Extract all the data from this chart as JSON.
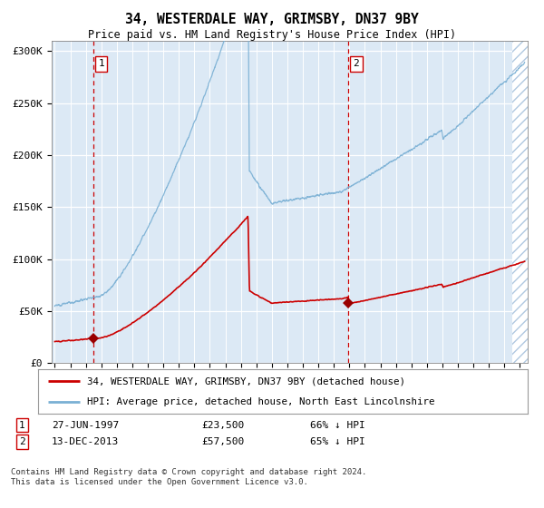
{
  "title": "34, WESTERDALE WAY, GRIMSBY, DN37 9BY",
  "subtitle": "Price paid vs. HM Land Registry's House Price Index (HPI)",
  "property_label": "34, WESTERDALE WAY, GRIMSBY, DN37 9BY (detached house)",
  "hpi_label": "HPI: Average price, detached house, North East Lincolnshire",
  "footnote": "Contains HM Land Registry data © Crown copyright and database right 2024.\nThis data is licensed under the Open Government Licence v3.0.",
  "sale1": {
    "date": "27-JUN-1997",
    "price": 23500,
    "pct": "66% ↓ HPI",
    "label": "1",
    "year": 1997.5
  },
  "sale2": {
    "date": "13-DEC-2013",
    "price": 57500,
    "pct": "65% ↓ HPI",
    "label": "2",
    "year": 2013.95
  },
  "ylim": [
    0,
    310000
  ],
  "xlim_start": 1994.8,
  "xlim_end": 2025.5,
  "bg_color": "#dce9f5",
  "hatch_color": "#b8cfe0",
  "line_color_property": "#cc0000",
  "line_color_hpi": "#7ab0d4",
  "marker_color": "#990000",
  "vline_color": "#cc0000",
  "grid_color": "#ffffff"
}
